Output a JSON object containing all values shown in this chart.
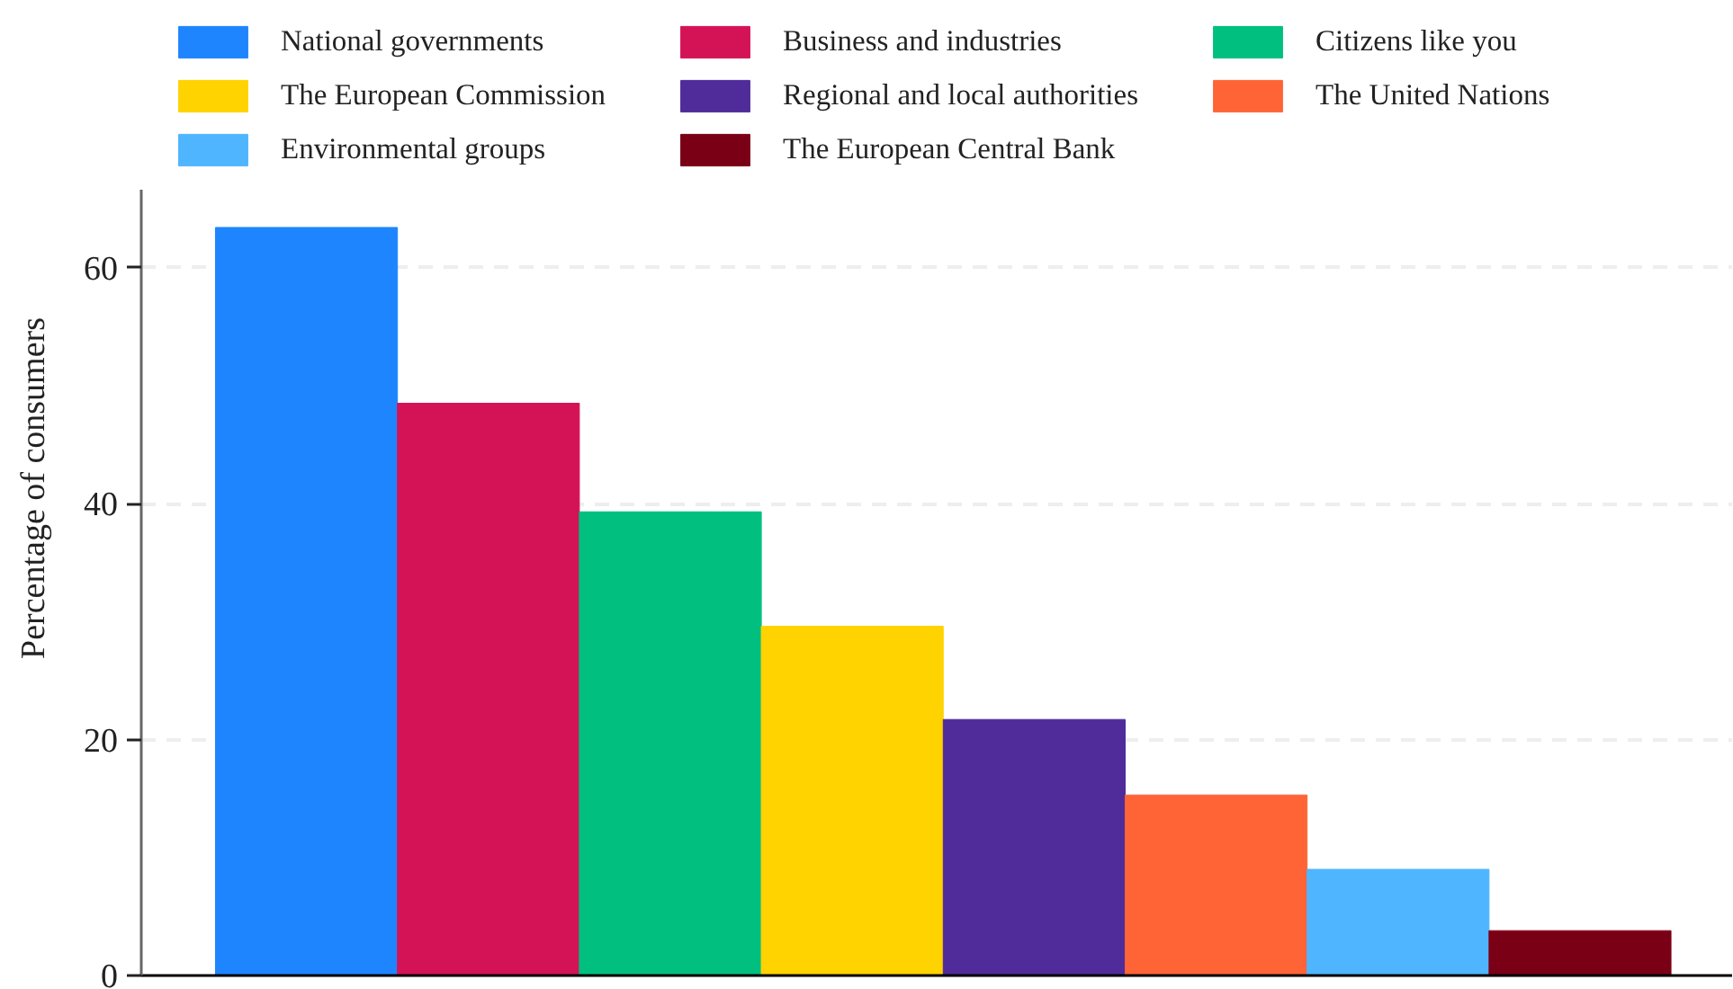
{
  "chart_data": {
    "type": "bar",
    "ylabel": "Percentage of consumers",
    "categories": [
      null
    ],
    "series": [
      {
        "name": "National governments",
        "color": "#1e85ff",
        "values": [
          63.4
        ]
      },
      {
        "name": "Business and industries",
        "color": "#d41356",
        "values": [
          48.5
        ]
      },
      {
        "name": "Citizens like you",
        "color": "#00bf7f",
        "values": [
          39.3
        ]
      },
      {
        "name": "The European Commission",
        "color": "#ffd300",
        "values": [
          29.6
        ]
      },
      {
        "name": "Regional and local authorities",
        "color": "#4f2c9a",
        "values": [
          21.7
        ]
      },
      {
        "name": "The United Nations",
        "color": "#ff6436",
        "values": [
          15.3
        ]
      },
      {
        "name": "Environmental groups",
        "color": "#50b5ff",
        "values": [
          9.0
        ]
      },
      {
        "name": "The European Central Bank",
        "color": "#7a0016",
        "values": [
          3.8
        ]
      }
    ],
    "ylim": [
      0,
      66.6
    ],
    "yticks": [
      0,
      20,
      40,
      60
    ],
    "grid": "y",
    "legend": "top"
  }
}
